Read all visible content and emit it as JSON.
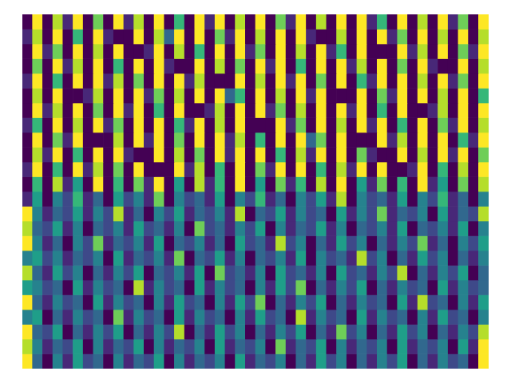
{
  "chart_data": {
    "type": "heatmap",
    "clim": [
      0,
      9
    ],
    "grid": false,
    "tick_labels": false,
    "cells": [
      [
        0,
        9,
        0,
        8,
        1,
        9,
        0,
        7,
        0,
        9,
        1,
        8,
        0,
        9,
        0,
        6,
        0,
        9,
        1,
        9,
        0,
        8,
        0,
        9,
        0,
        7,
        1,
        9,
        0,
        8,
        0,
        9,
        0,
        9,
        1,
        6,
        0,
        9,
        0,
        8,
        0,
        9,
        1,
        7,
        0,
        9
      ],
      [
        1,
        8,
        0,
        9,
        0,
        6,
        0,
        9,
        1,
        0,
        0,
        9,
        0,
        8,
        3,
        9,
        0,
        9,
        0,
        7,
        1,
        9,
        0,
        8,
        0,
        9,
        0,
        9,
        1,
        0,
        0,
        8,
        0,
        9,
        0,
        9,
        1,
        7,
        0,
        9,
        0,
        8,
        0,
        9,
        0,
        8
      ],
      [
        0,
        9,
        1,
        7,
        0,
        9,
        0,
        8,
        0,
        9,
        0,
        0,
        1,
        9,
        0,
        8,
        0,
        6,
        0,
        9,
        0,
        9,
        1,
        7,
        0,
        9,
        0,
        8,
        0,
        9,
        1,
        6,
        0,
        9,
        0,
        0,
        0,
        9,
        1,
        8,
        0,
        9,
        0,
        7,
        1,
        9
      ],
      [
        0,
        7,
        0,
        9,
        1,
        8,
        0,
        9,
        0,
        6,
        0,
        9,
        0,
        9,
        1,
        0,
        0,
        9,
        0,
        8,
        0,
        7,
        0,
        9,
        1,
        9,
        0,
        6,
        0,
        9,
        0,
        9,
        1,
        8,
        0,
        9,
        0,
        7,
        0,
        9,
        1,
        0,
        0,
        9,
        0,
        8
      ],
      [
        1,
        9,
        0,
        6,
        0,
        9,
        0,
        9,
        1,
        8,
        0,
        7,
        0,
        9,
        0,
        9,
        1,
        8,
        0,
        0,
        0,
        9,
        0,
        8,
        0,
        9,
        1,
        9,
        0,
        7,
        0,
        9,
        0,
        6,
        1,
        9,
        0,
        9,
        0,
        8,
        0,
        9,
        1,
        7,
        0,
        9
      ],
      [
        0,
        8,
        0,
        9,
        0,
        0,
        1,
        8,
        0,
        9,
        0,
        9,
        1,
        7,
        0,
        8,
        0,
        9,
        0,
        9,
        3,
        6,
        0,
        9,
        0,
        8,
        0,
        9,
        1,
        9,
        0,
        0,
        0,
        9,
        0,
        7,
        1,
        9,
        0,
        9,
        0,
        8,
        0,
        9,
        0,
        6
      ],
      [
        0,
        9,
        1,
        8,
        0,
        9,
        0,
        7,
        0,
        9,
        1,
        9,
        0,
        6,
        0,
        9,
        0,
        0,
        1,
        8,
        0,
        9,
        0,
        9,
        1,
        7,
        0,
        8,
        0,
        9,
        0,
        9,
        1,
        9,
        0,
        6,
        0,
        9,
        0,
        0,
        1,
        8,
        0,
        9,
        0,
        9
      ],
      [
        1,
        6,
        0,
        9,
        0,
        8,
        0,
        9,
        1,
        7,
        0,
        9,
        0,
        9,
        0,
        6,
        1,
        9,
        0,
        8,
        0,
        9,
        0,
        0,
        0,
        9,
        1,
        7,
        0,
        9,
        0,
        8,
        0,
        9,
        1,
        9,
        0,
        6,
        0,
        9,
        0,
        7,
        1,
        9,
        0,
        8
      ],
      [
        0,
        9,
        0,
        7,
        1,
        9,
        0,
        0,
        0,
        8,
        0,
        9,
        1,
        9,
        0,
        7,
        0,
        9,
        0,
        9,
        1,
        8,
        0,
        6,
        0,
        9,
        0,
        9,
        3,
        7,
        0,
        9,
        0,
        0,
        0,
        9,
        1,
        8,
        0,
        9,
        0,
        9,
        0,
        6,
        1,
        9
      ],
      [
        0,
        8,
        1,
        9,
        0,
        6,
        0,
        9,
        0,
        9,
        1,
        0,
        0,
        9,
        0,
        8,
        0,
        7,
        0,
        9,
        1,
        9,
        0,
        9,
        0,
        6,
        0,
        8,
        1,
        9,
        0,
        9,
        0,
        7,
        1,
        0,
        0,
        9,
        0,
        8,
        0,
        9,
        1,
        9,
        0,
        7
      ],
      [
        1,
        9,
        0,
        6,
        0,
        9,
        1,
        8,
        0,
        7,
        0,
        9,
        0,
        0,
        0,
        9,
        1,
        8,
        0,
        6,
        0,
        9,
        0,
        7,
        1,
        9,
        0,
        9,
        0,
        6,
        0,
        8,
        1,
        9,
        0,
        9,
        0,
        0,
        1,
        9,
        0,
        6,
        0,
        8,
        0,
        9
      ],
      [
        0,
        6,
        0,
        8,
        1,
        5,
        0,
        9,
        0,
        6,
        0,
        7,
        1,
        9,
        0,
        5,
        0,
        8,
        1,
        6,
        0,
        9,
        0,
        5,
        0,
        7,
        1,
        6,
        0,
        8,
        0,
        9,
        0,
        5,
        1,
        7,
        0,
        6,
        0,
        9,
        1,
        5,
        0,
        7,
        0,
        8
      ],
      [
        1,
        5,
        0,
        4,
        2,
        6,
        1,
        3,
        0,
        5,
        2,
        4,
        1,
        7,
        0,
        4,
        2,
        3,
        1,
        5,
        0,
        4,
        2,
        6,
        1,
        3,
        0,
        4,
        2,
        5,
        1,
        8,
        0,
        4,
        2,
        3,
        1,
        5,
        0,
        4,
        2,
        6,
        1,
        3,
        0,
        4
      ],
      [
        9,
        4,
        1,
        3,
        2,
        5,
        1,
        4,
        2,
        8,
        1,
        3,
        0,
        4,
        2,
        5,
        1,
        3,
        2,
        4,
        1,
        8,
        0,
        3,
        2,
        5,
        1,
        4,
        2,
        3,
        0,
        5,
        1,
        4,
        2,
        7,
        1,
        3,
        2,
        4,
        0,
        5,
        1,
        3,
        2,
        8
      ],
      [
        8,
        3,
        2,
        5,
        1,
        4,
        0,
        3,
        2,
        4,
        1,
        5,
        2,
        3,
        1,
        4,
        0,
        7,
        2,
        3,
        1,
        4,
        2,
        5,
        0,
        4,
        1,
        3,
        2,
        5,
        1,
        4,
        0,
        3,
        2,
        4,
        1,
        5,
        0,
        3,
        2,
        4,
        1,
        5,
        0,
        4
      ],
      [
        9,
        4,
        1,
        3,
        0,
        4,
        2,
        7,
        1,
        3,
        2,
        4,
        1,
        5,
        0,
        3,
        2,
        4,
        1,
        3,
        0,
        5,
        2,
        3,
        1,
        8,
        2,
        4,
        0,
        3,
        1,
        5,
        2,
        4,
        0,
        3,
        1,
        4,
        2,
        7,
        1,
        3,
        0,
        4,
        2,
        5
      ],
      [
        4,
        5,
        2,
        4,
        1,
        3,
        2,
        4,
        0,
        5,
        1,
        3,
        2,
        4,
        1,
        7,
        0,
        3,
        2,
        5,
        1,
        4,
        0,
        3,
        2,
        4,
        1,
        5,
        0,
        4,
        2,
        3,
        1,
        8,
        2,
        4,
        0,
        3,
        1,
        5,
        2,
        4,
        0,
        3,
        1,
        4
      ],
      [
        8,
        3,
        1,
        5,
        2,
        4,
        0,
        3,
        1,
        4,
        2,
        5,
        0,
        3,
        2,
        4,
        1,
        5,
        0,
        7,
        2,
        3,
        1,
        4,
        0,
        5,
        2,
        3,
        1,
        4,
        0,
        5,
        2,
        3,
        1,
        4,
        2,
        8,
        0,
        3,
        1,
        4,
        2,
        5,
        0,
        3
      ],
      [
        5,
        4,
        2,
        3,
        0,
        5,
        1,
        4,
        2,
        3,
        0,
        8,
        1,
        4,
        2,
        3,
        0,
        5,
        1,
        4,
        2,
        3,
        0,
        4,
        1,
        5,
        2,
        7,
        0,
        3,
        1,
        4,
        2,
        5,
        0,
        3,
        1,
        4,
        2,
        3,
        0,
        5,
        1,
        4,
        2,
        3
      ],
      [
        9,
        3,
        1,
        4,
        2,
        3,
        0,
        5,
        1,
        4,
        2,
        3,
        0,
        4,
        1,
        5,
        2,
        3,
        0,
        4,
        1,
        5,
        2,
        7,
        0,
        3,
        1,
        4,
        2,
        5,
        0,
        3,
        1,
        4,
        2,
        3,
        0,
        5,
        1,
        8,
        2,
        3,
        0,
        4,
        1,
        5
      ],
      [
        4,
        5,
        0,
        3,
        1,
        4,
        2,
        3,
        0,
        7,
        1,
        4,
        2,
        3,
        0,
        5,
        1,
        4,
        2,
        3,
        0,
        4,
        1,
        5,
        2,
        3,
        0,
        8,
        1,
        4,
        2,
        3,
        0,
        5,
        1,
        4,
        2,
        3,
        0,
        4,
        1,
        5,
        2,
        3,
        0,
        4
      ],
      [
        9,
        3,
        2,
        5,
        0,
        3,
        1,
        4,
        2,
        5,
        0,
        3,
        1,
        4,
        2,
        8,
        0,
        3,
        1,
        5,
        2,
        4,
        0,
        3,
        1,
        4,
        2,
        5,
        0,
        3,
        1,
        7,
        2,
        4,
        0,
        3,
        1,
        5,
        2,
        4,
        0,
        3,
        1,
        4,
        2,
        8
      ],
      [
        8,
        4,
        1,
        3,
        2,
        5,
        0,
        4,
        1,
        3,
        2,
        5,
        0,
        4,
        1,
        3,
        2,
        4,
        0,
        5,
        1,
        3,
        2,
        4,
        0,
        7,
        1,
        3,
        2,
        5,
        0,
        4,
        1,
        3,
        2,
        4,
        0,
        5,
        1,
        3,
        2,
        4,
        0,
        5,
        1,
        9
      ],
      [
        9,
        3,
        0,
        4,
        1,
        5,
        2,
        3,
        0,
        4,
        1,
        3,
        2,
        5,
        0,
        4,
        1,
        3,
        2,
        4,
        0,
        5,
        1,
        3,
        2,
        4,
        0,
        3,
        1,
        5,
        2,
        4,
        0,
        3,
        1,
        4,
        2,
        5,
        0,
        3,
        1,
        4,
        2,
        3,
        0,
        9
      ]
    ]
  }
}
